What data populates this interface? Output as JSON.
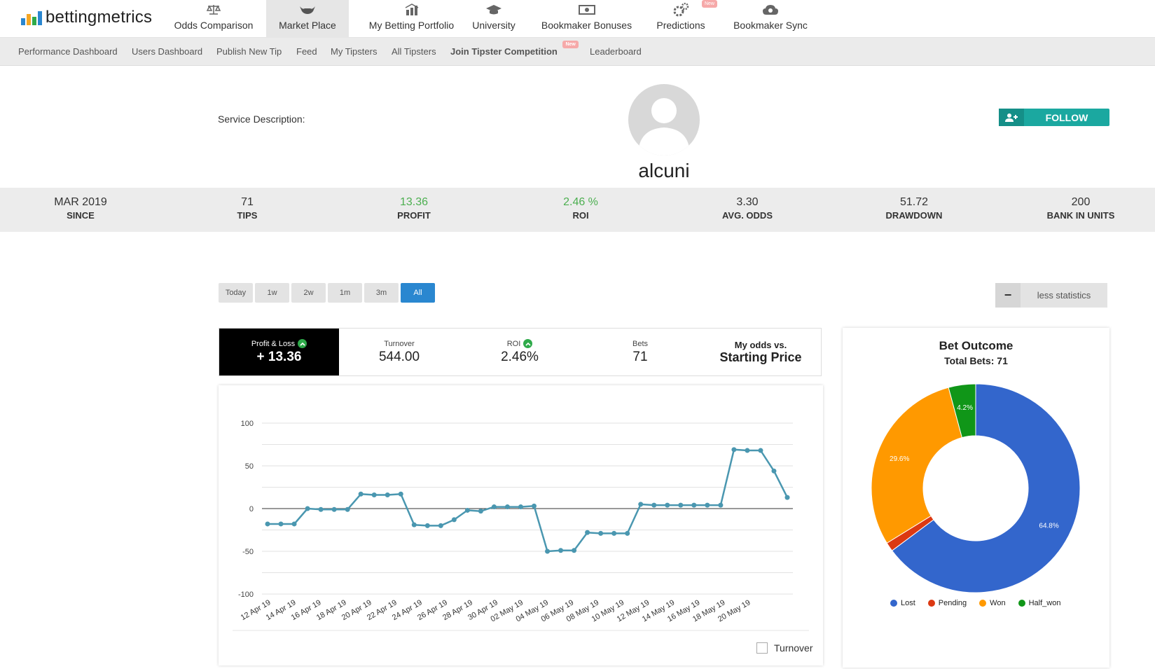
{
  "brand": {
    "name": "bettingmetrics",
    "bar_colors": [
      "#2a87d0",
      "#f6a623",
      "#2eaa4a",
      "#2a87d0"
    ]
  },
  "topnav": {
    "items": [
      {
        "label": "Odds Comparison",
        "icon": "scales-icon"
      },
      {
        "label": "Market Place",
        "icon": "bull-icon",
        "active": true
      },
      {
        "label": "My Betting Portfolio",
        "icon": "portfolio-icon"
      },
      {
        "label": "University",
        "icon": "graduation-cap-icon"
      },
      {
        "label": "Bookmaker Bonuses",
        "icon": "cash-icon"
      },
      {
        "label": "Predictions",
        "icon": "gears-icon",
        "badge": "New"
      },
      {
        "label": "Bookmaker Sync",
        "icon": "cloud-sync-icon"
      }
    ]
  },
  "subnav": {
    "items": [
      {
        "label": "Performance Dashboard"
      },
      {
        "label": "Users Dashboard"
      },
      {
        "label": "Publish New Tip"
      },
      {
        "label": "Feed"
      },
      {
        "label": "My Tipsters"
      },
      {
        "label": "All Tipsters"
      },
      {
        "label": "Join Tipster Competition",
        "bold": true,
        "badge": "New"
      },
      {
        "label": "Leaderboard"
      }
    ]
  },
  "profile": {
    "service_description_label": "Service Description:",
    "username": "alcuni",
    "follow_label": "FOLLOW"
  },
  "stats": [
    {
      "value": "MAR 2019",
      "label": "SINCE"
    },
    {
      "value": "71",
      "label": "TIPS"
    },
    {
      "value": "13.36",
      "label": "PROFIT",
      "green": true
    },
    {
      "value": "2.46 %",
      "label": "ROI",
      "green": true
    },
    {
      "value": "3.30",
      "label": "AVG. ODDS"
    },
    {
      "value": "51.72",
      "label": "DRAWDOWN"
    },
    {
      "value": "200",
      "label": "BANK IN UNITS"
    }
  ],
  "periods": [
    "Today",
    "1w",
    "2w",
    "1m",
    "3m",
    "All"
  ],
  "active_period": "All",
  "less_statistics_label": "less statistics",
  "summary": {
    "pl_label": "Profit & Loss",
    "pl_value": "+ 13.36",
    "turnover_label": "Turnover",
    "turnover_value": "544.00",
    "roi_label": "ROI",
    "roi_value": "2.46%",
    "bets_label": "Bets",
    "bets_value": "71",
    "odds_title": "My odds vs.",
    "odds_value": "Starting Price"
  },
  "turnover_toggle_label": "Turnover",
  "chart_data": [
    {
      "type": "line",
      "title": "",
      "xlabel": "",
      "ylabel": "",
      "ylim": [
        -100,
        100
      ],
      "yticks": [
        100,
        50,
        0,
        -50,
        -100
      ],
      "grid": true,
      "xtick_labels": [
        "12 Apr 19",
        "14 Apr 19",
        "16 Apr 19",
        "18 Apr 19",
        "20 Apr 19",
        "22 Apr 19",
        "24 Apr 19",
        "26 Apr 19",
        "28 Apr 19",
        "30 Apr 19",
        "02 May 19",
        "04 May 19",
        "06 May 19",
        "08 May 19",
        "10 May 19",
        "12 May 19",
        "14 May 19",
        "16 May 19",
        "18 May 19",
        "20 May 19"
      ],
      "color": "#4a97b0",
      "series": [
        {
          "values": [
            -18,
            -18,
            -18,
            0,
            -1,
            -1,
            -1,
            17,
            16,
            16,
            17,
            -19,
            -20,
            -20,
            -13,
            -2,
            -3,
            2,
            2,
            2,
            3,
            -50,
            -49,
            -49,
            -28,
            -29,
            -29,
            -29,
            5,
            4,
            4,
            4,
            4,
            4,
            4,
            69,
            68,
            68,
            44,
            13
          ]
        }
      ]
    },
    {
      "type": "pie",
      "title": "Bet Outcome",
      "subtitle": "Total Bets: 71",
      "legend_position": "bottom",
      "donut": true,
      "slices": [
        {
          "label": "Lost",
          "value": 64.8,
          "color": "#3366cc",
          "data_label": "64.8%"
        },
        {
          "label": "Pending",
          "value": 1.4,
          "color": "#dc3912",
          "data_label": ""
        },
        {
          "label": "Won",
          "value": 29.6,
          "color": "#ff9900",
          "data_label": "29.6%"
        },
        {
          "label": "Half_won",
          "value": 4.2,
          "color": "#109618",
          "data_label": "4.2%"
        }
      ]
    }
  ]
}
